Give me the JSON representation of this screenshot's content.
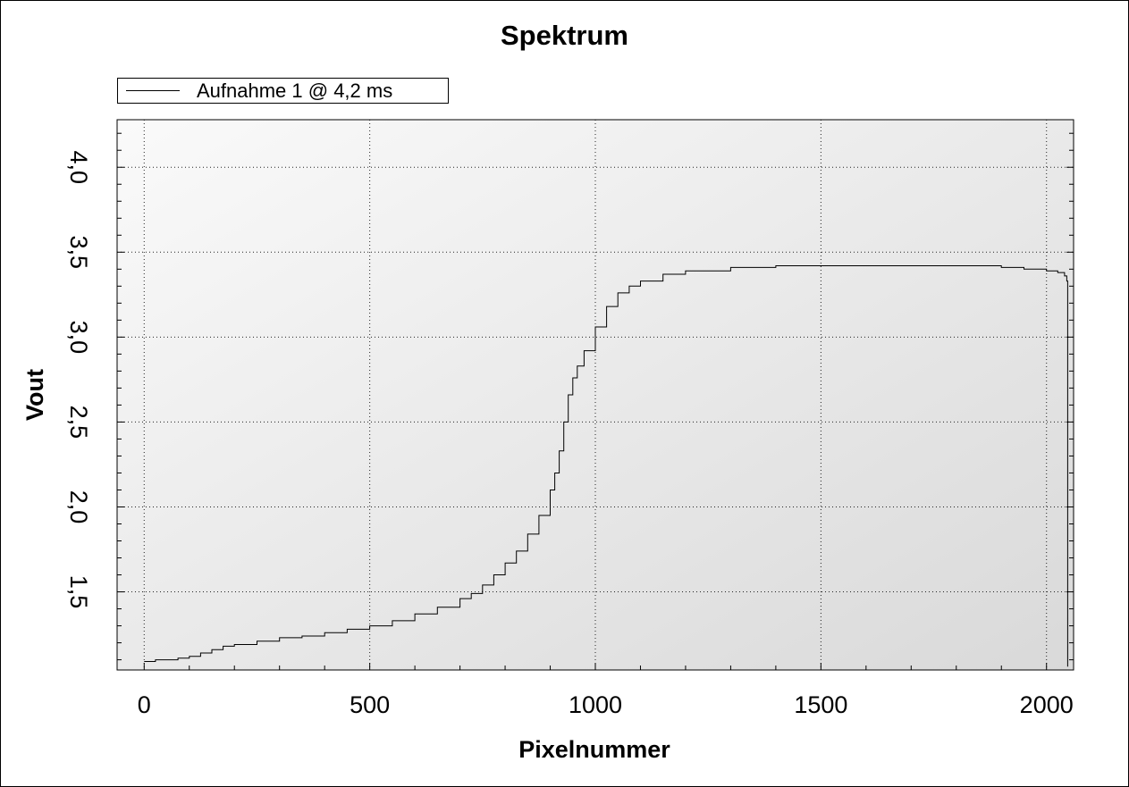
{
  "chart_data": {
    "type": "line",
    "title": "Spektrum",
    "xlabel": "Pixelnummer",
    "ylabel": "Vout",
    "xlim": [
      -60,
      2060
    ],
    "ylim": [
      1.04,
      4.28
    ],
    "x_ticks": [
      0,
      500,
      1000,
      1500,
      2000
    ],
    "x_tick_labels": [
      "0",
      "500",
      "1000",
      "1500",
      "2000"
    ],
    "y_ticks": [
      1.5,
      2.0,
      2.5,
      3.0,
      3.5,
      4.0
    ],
    "y_tick_labels": [
      "1,5",
      "2,0",
      "2,5",
      "3,0",
      "3,5",
      "4,0"
    ],
    "grid": true,
    "legend_position": "top-left",
    "series": [
      {
        "name": "Aufnahme 1 @ 4,2 ms",
        "color": "#000000",
        "x": [
          0,
          25,
          50,
          75,
          100,
          125,
          150,
          175,
          200,
          250,
          300,
          350,
          400,
          450,
          500,
          550,
          600,
          650,
          700,
          725,
          750,
          775,
          800,
          825,
          850,
          875,
          900,
          910,
          920,
          930,
          940,
          950,
          960,
          975,
          1000,
          1025,
          1050,
          1075,
          1100,
          1150,
          1200,
          1300,
          1400,
          1500,
          1600,
          1700,
          1800,
          1850,
          1900,
          1950,
          2000,
          2025,
          2040,
          2045,
          2047
        ],
        "y": [
          1.09,
          1.1,
          1.1,
          1.11,
          1.12,
          1.14,
          1.16,
          1.18,
          1.19,
          1.21,
          1.23,
          1.24,
          1.26,
          1.28,
          1.3,
          1.33,
          1.37,
          1.41,
          1.46,
          1.49,
          1.54,
          1.6,
          1.67,
          1.74,
          1.84,
          1.95,
          2.1,
          2.2,
          2.33,
          2.5,
          2.66,
          2.76,
          2.83,
          2.92,
          3.06,
          3.18,
          3.26,
          3.3,
          3.33,
          3.37,
          3.39,
          3.41,
          3.42,
          3.42,
          3.42,
          3.42,
          3.42,
          3.42,
          3.41,
          3.4,
          3.39,
          3.38,
          3.36,
          3.33,
          1.06
        ]
      }
    ]
  }
}
